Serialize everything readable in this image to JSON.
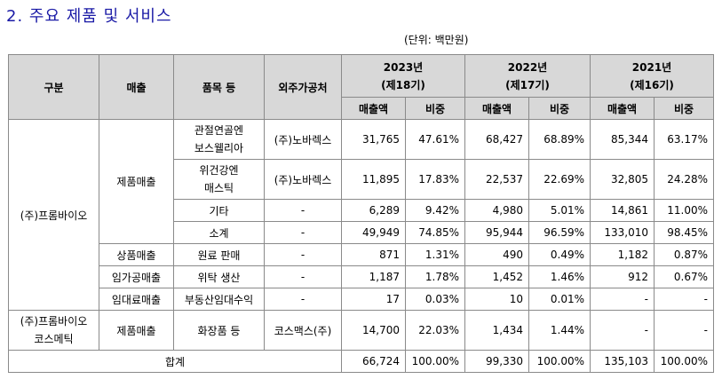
{
  "title": "2. 주요 제품 및 서비스",
  "unit": "(단위: 백만원)",
  "headers": {
    "gubun": "구분",
    "sales": "매출",
    "item": "품목 등",
    "supplier": "외주가공처",
    "y2023": "2023년",
    "y2023_term": "(제18기)",
    "y2022": "2022년",
    "y2022_term": "(제17기)",
    "y2021": "2021년",
    "y2021_term": "(제16기)",
    "amount": "매출액",
    "ratio": "비중"
  },
  "company1": "(주)프롬바이오",
  "company2_line1": "(주)프롬바이오",
  "company2_line2": "코스메틱",
  "rows": [
    {
      "item_l1": "관절연골엔",
      "item_l2": "보스웰리아",
      "supplier": "(주)노바렉스",
      "a23": "31,765",
      "r23": "47.61%",
      "a22": "68,427",
      "r22": "68.89%",
      "a21": "85,344",
      "r21": "63.17%"
    },
    {
      "item_l1": "위건강엔",
      "item_l2": "매스틱",
      "supplier": "(주)노바렉스",
      "a23": "11,895",
      "r23": "17.83%",
      "a22": "22,537",
      "r22": "22.69%",
      "a21": "32,805",
      "r21": "24.28%"
    },
    {
      "item": "기타",
      "supplier": "-",
      "a23": "6,289",
      "r23": "9.42%",
      "a22": "4,980",
      "r22": "5.01%",
      "a21": "14,861",
      "r21": "11.00%"
    },
    {
      "item": "소계",
      "supplier": "-",
      "a23": "49,949",
      "r23": "74.85%",
      "a22": "95,944",
      "r22": "96.59%",
      "a21": "133,010",
      "r21": "98.45%"
    },
    {
      "sales": "상품매출",
      "item": "원료 판매",
      "supplier": "-",
      "a23": "871",
      "r23": "1.31%",
      "a22": "490",
      "r22": "0.49%",
      "a21": "1,182",
      "r21": "0.87%"
    },
    {
      "sales": "임가공매출",
      "item": "위탁 생산",
      "supplier": "-",
      "a23": "1,187",
      "r23": "1.78%",
      "a22": "1,452",
      "r22": "1.46%",
      "a21": "912",
      "r21": "0.67%"
    },
    {
      "sales": "임대료매출",
      "item": "부동산임대수익",
      "supplier": "-",
      "a23": "17",
      "r23": "0.03%",
      "a22": "10",
      "r22": "0.01%",
      "a21": "-",
      "r21": "-"
    },
    {
      "sales": "제품매출",
      "item": "화장품 등",
      "supplier": "코스맥스(주)",
      "a23": "14,700",
      "r23": "22.03%",
      "a22": "1,434",
      "r22": "1.44%",
      "a21": "-",
      "r21": "-"
    }
  ],
  "product_sales": "제품매출",
  "total": {
    "label": "합계",
    "a23": "66,724",
    "r23": "100.00%",
    "a22": "99,330",
    "r22": "100.00%",
    "a21": "135,103",
    "r21": "100.00%"
  }
}
